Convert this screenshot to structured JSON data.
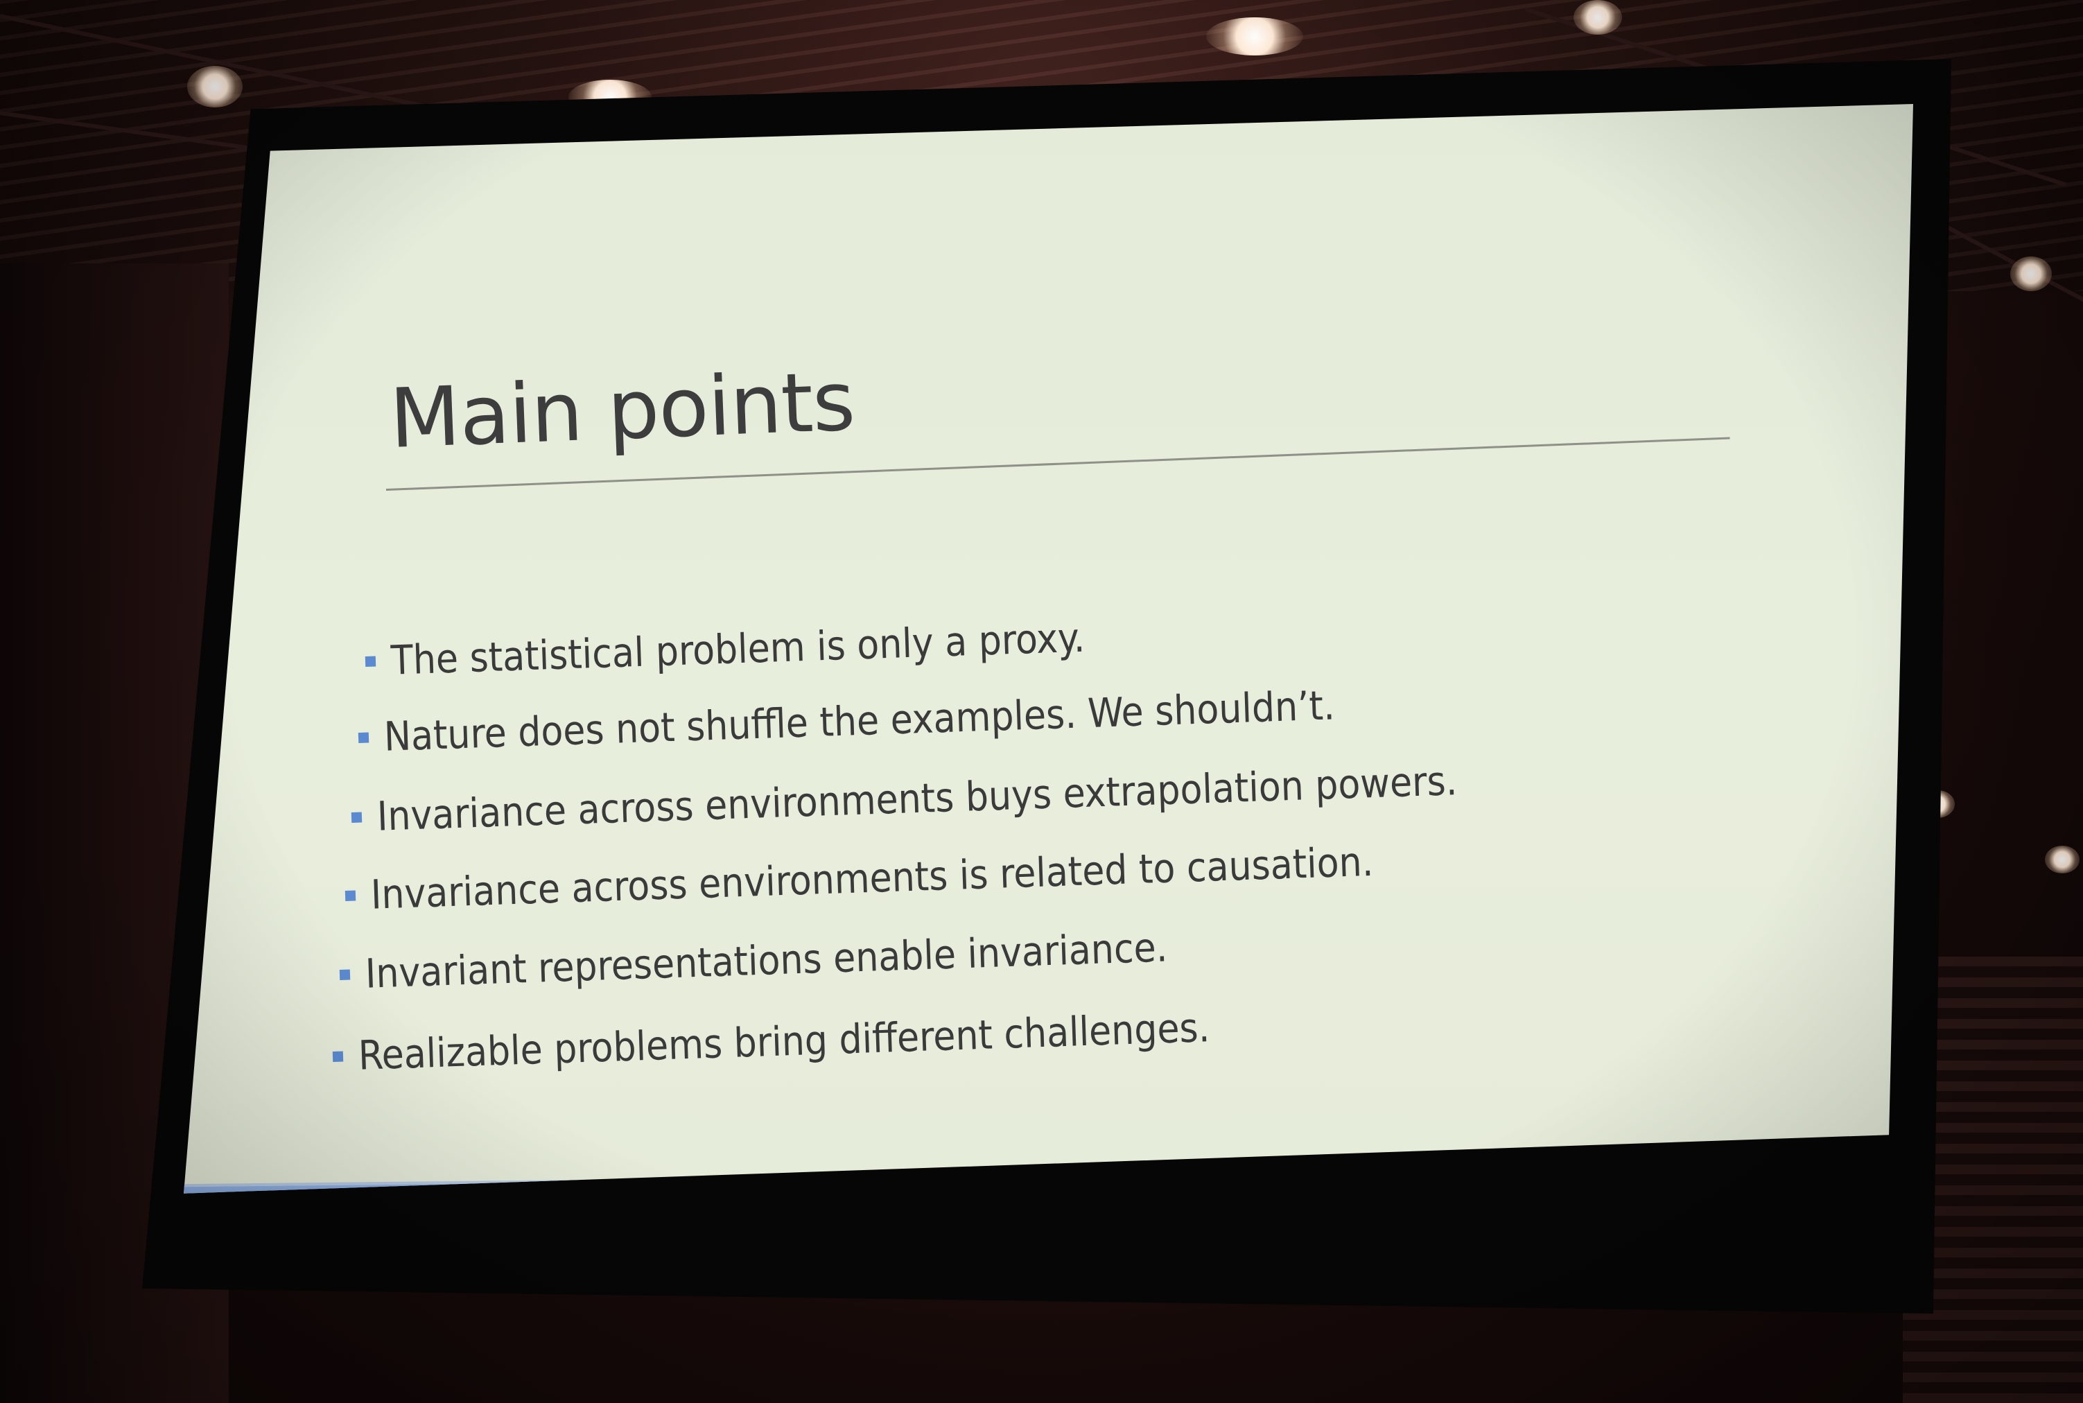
{
  "slide": {
    "title": "Main points",
    "bullets": [
      "The statistical problem is only a proxy.",
      "Nature does not shuffle the examples. We shouldn’t.",
      "Invariance across environments buys extrapolation powers.",
      "Invariance across environments is related to causation.",
      "Invariant representations enable invariance.",
      "Realizable problems bring different challenges."
    ]
  },
  "colors": {
    "slide_background": "#e6ecd9",
    "accent_band": "#6e95d7",
    "bullet_marker": "#5b8ad0",
    "text": "#3a3a3a"
  }
}
